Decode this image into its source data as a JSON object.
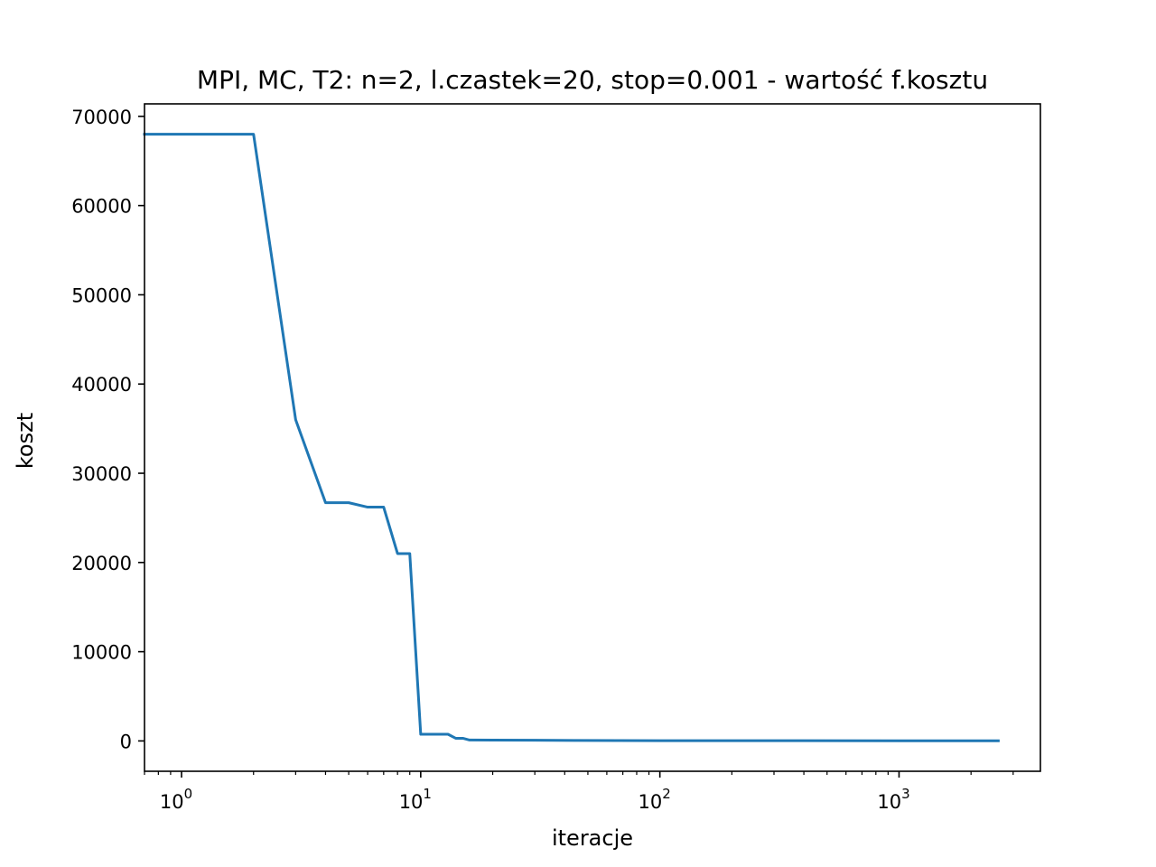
{
  "chart_data": {
    "type": "line",
    "title": "MPI, MC, T2: n=2, l.czastek=20, stop=0.001 - wartość f.kosztu",
    "xlabel": "iteracje",
    "ylabel": "koszt",
    "xscale": "log",
    "xlim": [
      0.7,
      3900
    ],
    "ylim": [
      -3400,
      71400
    ],
    "grid": false,
    "legend": "none",
    "xticks": [
      {
        "value": 1,
        "base": "10",
        "exp": "0"
      },
      {
        "value": 10,
        "base": "10",
        "exp": "1"
      },
      {
        "value": 100,
        "base": "10",
        "exp": "2"
      },
      {
        "value": 1000,
        "base": "10",
        "exp": "3"
      }
    ],
    "yticks": [
      {
        "value": 0,
        "label": "0"
      },
      {
        "value": 10000,
        "label": "10000"
      },
      {
        "value": 20000,
        "label": "20000"
      },
      {
        "value": 30000,
        "label": "30000"
      },
      {
        "value": 40000,
        "label": "40000"
      },
      {
        "value": 50000,
        "label": "50000"
      },
      {
        "value": 60000,
        "label": "60000"
      },
      {
        "value": 70000,
        "label": "70000"
      }
    ],
    "series": [
      {
        "color": "#1f77b4",
        "x": [
          0.7,
          2,
          3,
          4,
          5,
          6,
          7,
          8,
          9,
          10,
          11,
          12,
          13,
          14,
          15,
          16,
          20,
          30,
          45,
          100,
          1000,
          2600
        ],
        "y": [
          68000,
          68000,
          36000,
          26700,
          26700,
          26200,
          26200,
          21000,
          21000,
          750,
          750,
          750,
          750,
          300,
          300,
          100,
          90,
          80,
          50,
          30,
          20,
          10
        ]
      }
    ]
  }
}
